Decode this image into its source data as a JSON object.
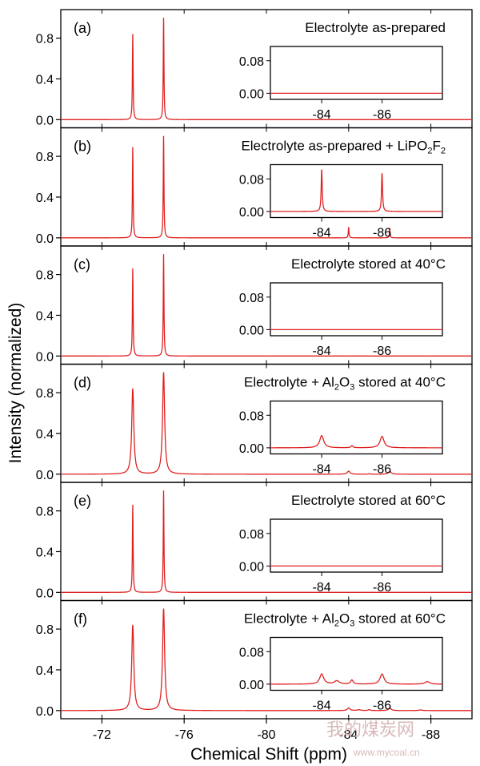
{
  "chart_data": {
    "type": "line",
    "xlabel": "Chemical Shift (ppm)",
    "ylabel": "Intensity (normalized)",
    "xlim": [
      -70,
      -90
    ],
    "x_ticks": [
      -72,
      -76,
      -80,
      -84,
      -88
    ],
    "ylim": [
      -0.08,
      1.08
    ],
    "y_ticks": [
      0.0,
      0.4,
      0.8
    ],
    "inset": {
      "xlim": [
        -82.3,
        -88.0
      ],
      "ylim": [
        -0.015,
        0.115
      ],
      "x_ticks": [
        -84,
        -86
      ],
      "y_ticks": [
        0.0,
        0.08
      ]
    },
    "line_color": "#e02020",
    "panels": [
      {
        "label": "(a)",
        "title": [
          "Electrolyte as-prepared"
        ],
        "main_peaks": [
          {
            "x": -73.5,
            "y": 0.84,
            "w": 0.02
          },
          {
            "x": -75.0,
            "y": 1.0,
            "w": 0.02
          }
        ],
        "minor_peaks": [],
        "inset_peaks": []
      },
      {
        "label": "(b)",
        "title": [
          "Electrolyte as-prepared + LiPO",
          "2",
          "F",
          "2"
        ],
        "main_peaks": [
          {
            "x": -73.5,
            "y": 0.89,
            "w": 0.02
          },
          {
            "x": -75.0,
            "y": 1.0,
            "w": 0.02
          },
          {
            "x": -84.0,
            "y": 0.105,
            "w": 0.02
          },
          {
            "x": -86.0,
            "y": 0.095,
            "w": 0.02
          }
        ],
        "minor_peaks": [],
        "inset_peaks": [
          {
            "x": -84.0,
            "y": 0.105,
            "w": 0.02
          },
          {
            "x": -86.0,
            "y": 0.095,
            "w": 0.02
          }
        ]
      },
      {
        "label": "(c)",
        "title": [
          "Electrolyte stored at 40°C"
        ],
        "main_peaks": [
          {
            "x": -73.5,
            "y": 0.86,
            "w": 0.02
          },
          {
            "x": -75.0,
            "y": 1.0,
            "w": 0.02
          }
        ],
        "minor_peaks": [],
        "inset_peaks": []
      },
      {
        "label": "(d)",
        "title": [
          "Electrolyte + Al",
          "2",
          "O",
          "3",
          " stored at 40°C"
        ],
        "main_peaks": [
          {
            "x": -73.5,
            "y": 0.84,
            "w": 0.06
          },
          {
            "x": -75.0,
            "y": 1.0,
            "w": 0.06
          },
          {
            "x": -84.0,
            "y": 0.03,
            "w": 0.08
          },
          {
            "x": -85.0,
            "y": 0.005,
            "w": 0.04
          },
          {
            "x": -86.0,
            "y": 0.028,
            "w": 0.08
          }
        ],
        "minor_peaks": [],
        "inset_peaks": [
          {
            "x": -84.0,
            "y": 0.03,
            "w": 0.08
          },
          {
            "x": -85.0,
            "y": 0.005,
            "w": 0.04
          },
          {
            "x": -86.0,
            "y": 0.028,
            "w": 0.08
          }
        ]
      },
      {
        "label": "(e)",
        "title": [
          "Electrolyte stored at 60°C"
        ],
        "main_peaks": [
          {
            "x": -73.5,
            "y": 0.86,
            "w": 0.02
          },
          {
            "x": -75.0,
            "y": 1.0,
            "w": 0.02
          }
        ],
        "minor_peaks": [],
        "inset_peaks": []
      },
      {
        "label": "(f)",
        "title": [
          "Electrolyte + Al",
          "2",
          "O",
          "3",
          " stored at 60°C"
        ],
        "main_peaks": [
          {
            "x": -73.5,
            "y": 0.84,
            "w": 0.06
          },
          {
            "x": -75.0,
            "y": 1.0,
            "w": 0.06
          },
          {
            "x": -84.0,
            "y": 0.025,
            "w": 0.08
          },
          {
            "x": -84.5,
            "y": 0.008,
            "w": 0.1
          },
          {
            "x": -85.0,
            "y": 0.01,
            "w": 0.05
          },
          {
            "x": -86.0,
            "y": 0.025,
            "w": 0.08
          },
          {
            "x": -87.5,
            "y": 0.006,
            "w": 0.1
          }
        ],
        "minor_peaks": [],
        "inset_peaks": [
          {
            "x": -84.0,
            "y": 0.025,
            "w": 0.08
          },
          {
            "x": -84.5,
            "y": 0.008,
            "w": 0.1
          },
          {
            "x": -85.0,
            "y": 0.01,
            "w": 0.05
          },
          {
            "x": -86.0,
            "y": 0.025,
            "w": 0.08
          },
          {
            "x": -87.5,
            "y": 0.006,
            "w": 0.1
          }
        ]
      }
    ]
  },
  "watermark": {
    "cn": "我的煤炭网",
    "en": "www.mycoal.cn"
  }
}
